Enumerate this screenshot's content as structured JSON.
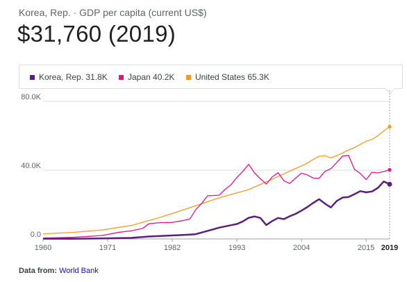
{
  "header": {
    "subtitle": "Korea, Rep. · GDP per capita (current US$)",
    "headline": "$31,760 (2019)"
  },
  "legend": [
    {
      "label": "Korea, Rep. 31.8K",
      "color": "#5b1e7a"
    },
    {
      "label": "Japan 40.2K",
      "color": "#e0138c"
    },
    {
      "label": "United States 65.3K",
      "color": "#f29a1e"
    }
  ],
  "footer": {
    "label": "Data from:",
    "source": "World Bank"
  },
  "chart_data": {
    "type": "line",
    "x_ticks": [
      "1960",
      "1971",
      "1982",
      "1993",
      "2004",
      "2015"
    ],
    "highlight_label": "2019",
    "y_ticks": [
      "0.0",
      "40.0K",
      "80.0K"
    ],
    "xlim": [
      1960,
      2019
    ],
    "ylim": [
      0,
      80000
    ],
    "grid": true,
    "series": [
      {
        "name": "Korea, Rep.",
        "color": "#5b1e7a",
        "x": [
          1960,
          1965,
          1970,
          1975,
          1978,
          1980,
          1983,
          1985,
          1986,
          1988,
          1990,
          1992,
          1993,
          1994,
          1995,
          1996,
          1997,
          1998,
          1999,
          2000,
          2001,
          2002,
          2003,
          2004,
          2005,
          2006,
          2007,
          2008,
          2009,
          2010,
          2011,
          2012,
          2013,
          2014,
          2015,
          2016,
          2017,
          2018,
          2019
        ],
        "y": [
          160,
          110,
          280,
          620,
          1400,
          1700,
          2200,
          2500,
          2800,
          4700,
          6600,
          8000,
          8700,
          10200,
          12300,
          13100,
          12200,
          8100,
          10400,
          12200,
          11500,
          13200,
          14600,
          16500,
          18600,
          21000,
          23100,
          20500,
          18300,
          22100,
          24100,
          24400,
          26000,
          27800,
          27100,
          27600,
          29700,
          33400,
          31800
        ]
      },
      {
        "name": "Japan",
        "color": "#e0138c",
        "x": [
          1960,
          1965,
          1970,
          1973,
          1975,
          1977,
          1978,
          1980,
          1982,
          1984,
          1985,
          1986,
          1987,
          1988,
          1990,
          1991,
          1992,
          1993,
          1994,
          1995,
          1996,
          1997,
          1998,
          1999,
          2000,
          2001,
          2002,
          2003,
          2004,
          2005,
          2006,
          2007,
          2008,
          2009,
          2010,
          2011,
          2012,
          2013,
          2014,
          2015,
          2016,
          2017,
          2018,
          2019
        ],
        "y": [
          480,
          920,
          2000,
          3900,
          4700,
          6200,
          8800,
          9500,
          9600,
          10800,
          11600,
          17100,
          20700,
          25100,
          25400,
          28900,
          31500,
          35800,
          39300,
          43400,
          38400,
          35000,
          31900,
          36000,
          38500,
          33800,
          32300,
          35400,
          38300,
          37200,
          35400,
          35300,
          39300,
          40900,
          44500,
          48200,
          48600,
          40500,
          38100,
          34500,
          38800,
          38400,
          39200,
          40200
        ]
      },
      {
        "name": "United States",
        "color": "#f29a1e",
        "x": [
          1960,
          1965,
          1970,
          1975,
          1980,
          1985,
          1990,
          1995,
          2000,
          2005,
          2006,
          2007,
          2008,
          2009,
          2010,
          2011,
          2012,
          2013,
          2014,
          2015,
          2016,
          2017,
          2018,
          2019
        ],
        "y": [
          3000,
          3800,
          5200,
          7800,
          12600,
          18200,
          23900,
          28700,
          36300,
          44100,
          46300,
          48100,
          48400,
          47100,
          48500,
          50000,
          51700,
          53100,
          55000,
          56800,
          57900,
          60000,
          62800,
          65300
        ]
      }
    ]
  }
}
